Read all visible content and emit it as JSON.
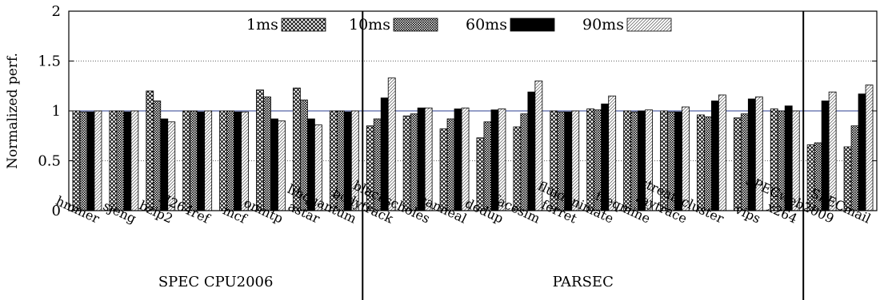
{
  "chart_data": {
    "type": "bar",
    "ylabel": "Normalized perf.",
    "ylim": [
      0,
      2
    ],
    "yticks": [
      0,
      0.5,
      1,
      1.5,
      2
    ],
    "ytick_labels": [
      "0",
      "0.5",
      "1",
      "1.5",
      "2"
    ],
    "grid": "horizontal dotted",
    "reference_line": 1,
    "legend_position": "top-center",
    "categories": [
      "hmmer",
      "sjeng",
      "bzip2",
      "H264ref",
      "mcf",
      "omntp",
      "astar",
      "libquantum",
      "bodytrack",
      "blackscholes",
      "canneal",
      "dedup",
      "facesim",
      "ferret",
      "fluidanimate",
      "freqmine",
      "raytrace",
      "streamcluster",
      "vips",
      "x264",
      "SPECweb2009",
      "SPECmail"
    ],
    "series": [
      {
        "name": "1ms",
        "values": [
          1.0,
          1.0,
          1.2,
          1.0,
          1.0,
          1.21,
          1.23,
          1.0,
          0.85,
          0.95,
          0.82,
          0.73,
          0.84,
          1.0,
          1.02,
          1.0,
          1.0,
          0.96,
          0.93,
          1.02,
          0.66,
          0.64
        ]
      },
      {
        "name": "10ms",
        "values": [
          0.99,
          1.0,
          1.1,
          1.0,
          1.0,
          1.14,
          1.11,
          1.0,
          0.92,
          0.97,
          0.92,
          0.89,
          0.97,
          0.99,
          1.01,
          0.99,
          0.99,
          0.94,
          0.97,
          1.0,
          0.68,
          0.85
        ]
      },
      {
        "name": "60ms",
        "values": [
          0.99,
          0.99,
          0.92,
          0.99,
          0.99,
          0.92,
          0.92,
          0.99,
          1.13,
          1.03,
          1.02,
          1.01,
          1.19,
          0.99,
          1.07,
          1.0,
          0.99,
          1.1,
          1.12,
          1.05,
          1.1,
          1.17
        ]
      },
      {
        "name": "90ms",
        "values": [
          1.0,
          1.0,
          0.89,
          1.0,
          0.99,
          0.9,
          0.86,
          1.0,
          1.33,
          1.03,
          1.03,
          1.02,
          1.3,
          1.0,
          1.15,
          1.01,
          1.04,
          1.16,
          1.14,
          1.0,
          1.19,
          1.26
        ]
      }
    ],
    "group_labels": [
      {
        "label": "SPEC CPU2006",
        "categories": [
          "hmmer",
          "sjeng",
          "bzip2",
          "H264ref",
          "mcf",
          "omntp",
          "astar",
          "libquantum"
        ]
      },
      {
        "label": "PARSEC",
        "categories": [
          "bodytrack",
          "blackscholes",
          "canneal",
          "dedup",
          "facesim",
          "ferret",
          "fluidanimate",
          "freqmine",
          "raytrace",
          "streamcluster",
          "vips",
          "x264"
        ]
      },
      {
        "label": "",
        "categories": [
          "SPECweb2009",
          "SPECmail"
        ]
      }
    ]
  }
}
